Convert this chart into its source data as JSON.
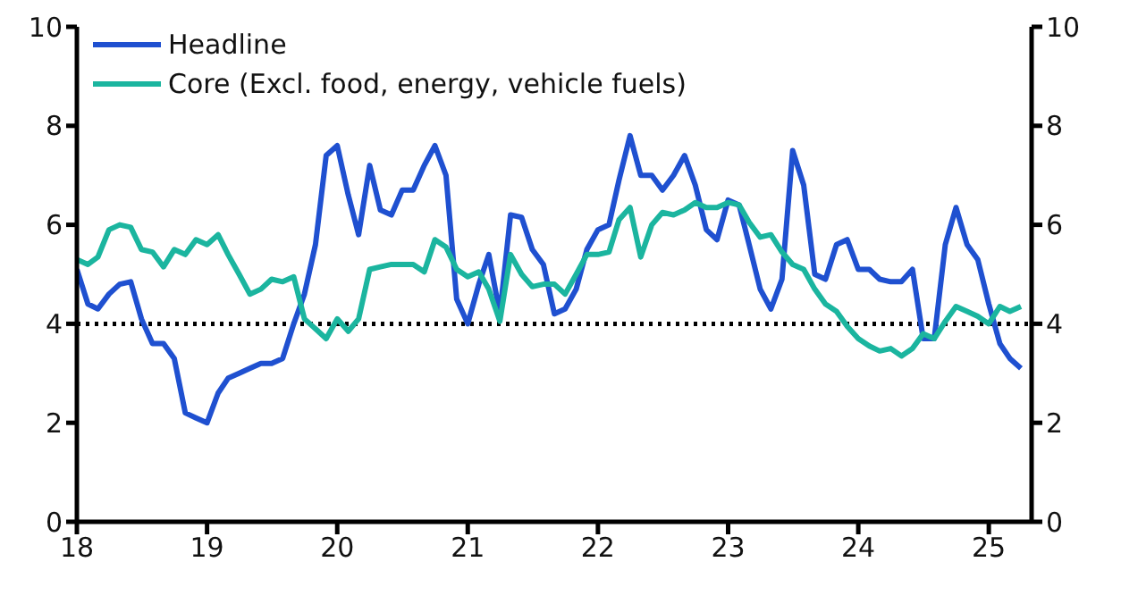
{
  "chart_data": {
    "type": "line",
    "x": [
      "2018-01",
      "2018-02",
      "2018-03",
      "2018-04",
      "2018-05",
      "2018-06",
      "2018-07",
      "2018-08",
      "2018-09",
      "2018-10",
      "2018-11",
      "2018-12",
      "2019-01",
      "2019-02",
      "2019-03",
      "2019-04",
      "2019-05",
      "2019-06",
      "2019-07",
      "2019-08",
      "2019-09",
      "2019-10",
      "2019-11",
      "2019-12",
      "2020-01",
      "2020-02",
      "2020-03",
      "2020-04",
      "2020-05",
      "2020-06",
      "2020-07",
      "2020-08",
      "2020-09",
      "2020-10",
      "2020-11",
      "2020-12",
      "2021-01",
      "2021-02",
      "2021-03",
      "2021-04",
      "2021-05",
      "2021-06",
      "2021-07",
      "2021-08",
      "2021-09",
      "2021-10",
      "2021-11",
      "2021-12",
      "2022-01",
      "2022-02",
      "2022-03",
      "2022-04",
      "2022-05",
      "2022-06",
      "2022-07",
      "2022-08",
      "2022-09",
      "2022-10",
      "2022-11",
      "2022-12",
      "2023-01",
      "2023-02",
      "2023-03",
      "2023-04",
      "2023-05",
      "2023-06",
      "2023-07",
      "2023-08",
      "2023-09",
      "2023-10",
      "2023-11",
      "2023-12",
      "2024-01",
      "2024-02",
      "2024-03",
      "2024-04",
      "2024-05",
      "2024-06",
      "2024-07",
      "2024-08",
      "2024-09",
      "2024-10",
      "2024-11",
      "2024-12",
      "2025-01",
      "2025-02",
      "2025-03",
      "2025-04"
    ],
    "series": [
      {
        "name": "Headline",
        "color": "#1f50d0",
        "values": [
          5.1,
          4.4,
          4.3,
          4.6,
          4.8,
          4.85,
          4.1,
          3.6,
          3.6,
          3.3,
          2.2,
          2.1,
          2.0,
          2.6,
          2.9,
          3.0,
          3.1,
          3.2,
          3.2,
          3.3,
          4.0,
          4.6,
          5.6,
          7.4,
          7.6,
          6.6,
          5.8,
          7.2,
          6.3,
          6.2,
          6.7,
          6.7,
          7.2,
          7.6,
          7.0,
          4.5,
          4.0,
          4.8,
          5.4,
          4.2,
          6.2,
          6.15,
          5.5,
          5.2,
          4.2,
          4.3,
          4.7,
          5.5,
          5.9,
          6.0,
          6.9,
          7.8,
          7.0,
          7.0,
          6.7,
          7.0,
          7.4,
          6.8,
          5.9,
          5.7,
          6.5,
          6.4,
          5.6,
          4.7,
          4.3,
          4.9,
          7.5,
          6.8,
          5.0,
          4.9,
          5.6,
          5.7,
          5.1,
          5.1,
          4.9,
          4.85,
          4.85,
          5.1,
          3.7,
          3.7,
          5.6,
          6.35,
          5.6,
          5.3,
          4.4,
          3.6,
          3.3,
          3.1
        ]
      },
      {
        "name": "Core (Excl. food, energy, vehicle fuels)",
        "color": "#1bb59f",
        "values": [
          5.3,
          5.2,
          5.35,
          5.9,
          6.0,
          5.95,
          5.5,
          5.45,
          5.15,
          5.5,
          5.4,
          5.7,
          5.6,
          5.8,
          5.4,
          5.0,
          4.6,
          4.7,
          4.9,
          4.85,
          4.95,
          4.1,
          3.9,
          3.7,
          4.1,
          3.85,
          4.1,
          5.1,
          5.15,
          5.2,
          5.2,
          5.2,
          5.05,
          5.7,
          5.55,
          5.1,
          4.95,
          5.05,
          4.7,
          4.05,
          5.4,
          5.0,
          4.75,
          4.8,
          4.8,
          4.6,
          5.0,
          5.4,
          5.4,
          5.45,
          6.1,
          6.35,
          5.35,
          6.0,
          6.25,
          6.2,
          6.3,
          6.45,
          6.35,
          6.35,
          6.45,
          6.4,
          6.05,
          5.75,
          5.8,
          5.45,
          5.2,
          5.1,
          4.7,
          4.4,
          4.25,
          3.95,
          3.7,
          3.55,
          3.45,
          3.5,
          3.35,
          3.5,
          3.8,
          3.7,
          4.05,
          4.35,
          4.25,
          4.15,
          4.0,
          4.35,
          4.25,
          4.35
        ]
      }
    ],
    "xlim": [
      "2018-01",
      "2025-05"
    ],
    "xticks": [
      {
        "value": "2018-01",
        "label": "18"
      },
      {
        "value": "2019-01",
        "label": "19"
      },
      {
        "value": "2020-01",
        "label": "20"
      },
      {
        "value": "2021-01",
        "label": "21"
      },
      {
        "value": "2022-01",
        "label": "22"
      },
      {
        "value": "2023-01",
        "label": "23"
      },
      {
        "value": "2024-01",
        "label": "24"
      },
      {
        "value": "2025-01",
        "label": "25"
      }
    ],
    "ylim": [
      0,
      10
    ],
    "yticks": [
      0,
      2,
      4,
      6,
      8,
      10
    ],
    "y2lim": [
      0,
      10
    ],
    "y2ticks": [
      0,
      2,
      4,
      6,
      8,
      10
    ],
    "ref_lines": [
      {
        "axis": "y",
        "value": 4,
        "color": "#000000",
        "line_style": "dotted"
      }
    ],
    "legend": "top left",
    "grid": false,
    "marker": "none",
    "line_style": "solid"
  }
}
